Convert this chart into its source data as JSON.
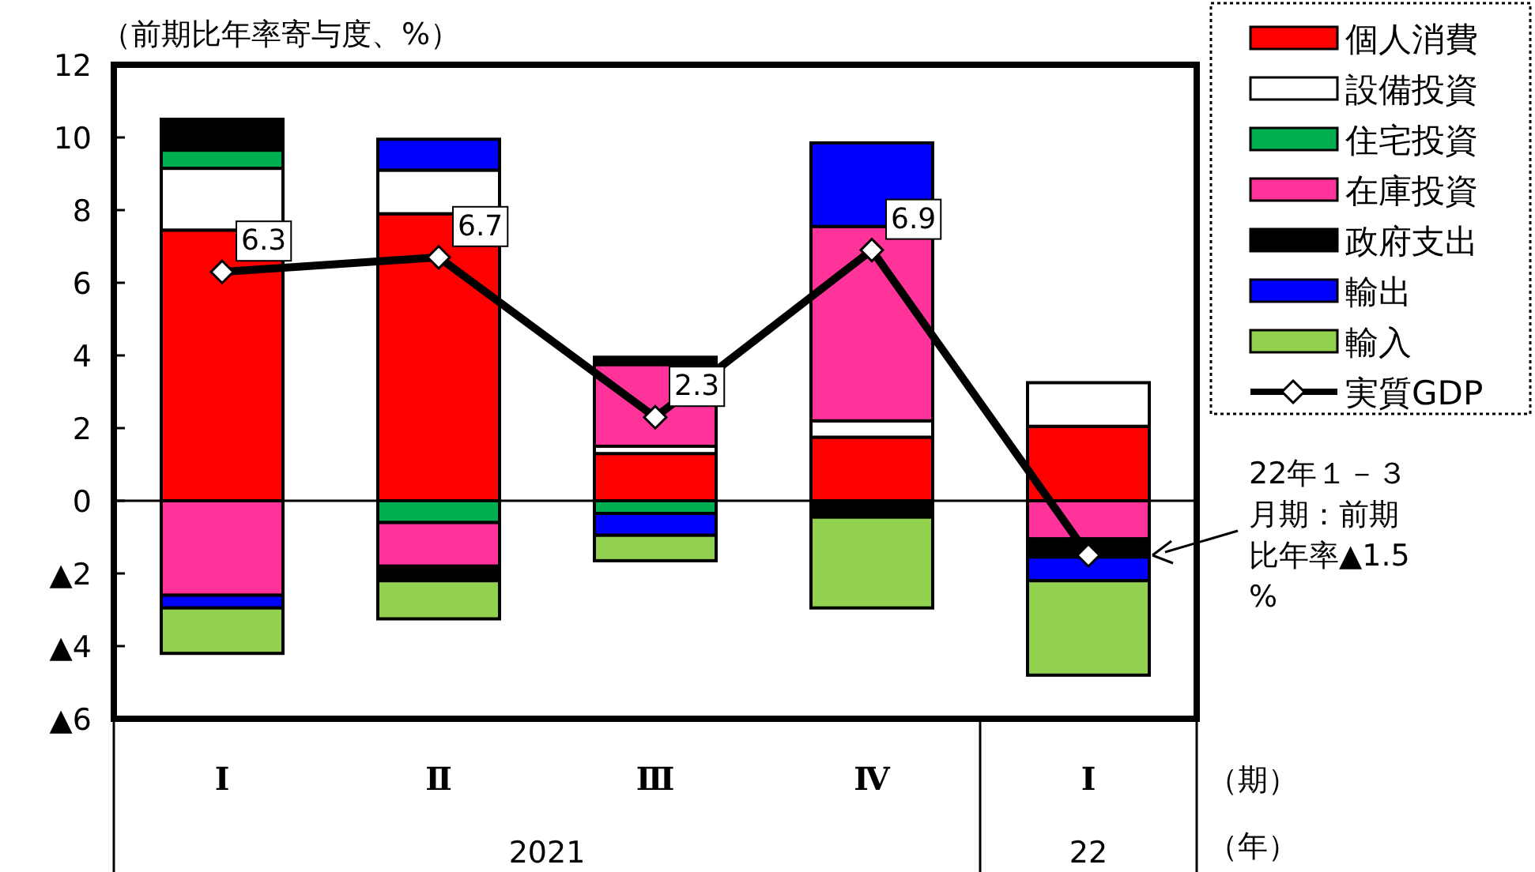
{
  "chart_data": {
    "type": "bar",
    "stacked": true,
    "ylabel": "（前期比年率寄与度、%）",
    "categories": [
      "Ⅰ",
      "Ⅱ",
      "Ⅲ",
      "Ⅳ",
      "Ⅰ"
    ],
    "ylim": [
      -6,
      12
    ],
    "yticks": [
      {
        "value": -6,
        "label": "▲6"
      },
      {
        "value": -4,
        "label": "▲4"
      },
      {
        "value": -2,
        "label": "▲2"
      },
      0,
      2,
      4,
      6,
      8,
      10,
      12
    ],
    "legend": "top right",
    "marker": "diamond",
    "series": [
      {
        "name": "個人消費",
        "color": "#ff0000",
        "values": [
          7.45,
          7.9,
          1.3,
          1.75,
          2.05
        ]
      },
      {
        "name": "設備投資",
        "color": "#ffffff",
        "values": [
          1.7,
          1.2,
          0.2,
          0.45,
          1.2
        ]
      },
      {
        "name": "住宅投資",
        "color": "#00b050",
        "values": [
          0.5,
          -0.6,
          -0.35,
          null,
          null
        ]
      },
      {
        "name": "在庫投資",
        "color": "#ff3399",
        "values": [
          -2.6,
          -1.2,
          2.25,
          5.35,
          -1.05
        ]
      },
      {
        "name": "政府支出",
        "color": "#000000",
        "values": [
          0.85,
          -0.4,
          0.2,
          -0.45,
          -0.5
        ]
      },
      {
        "name": "輸出",
        "color": "#0000ff",
        "values": [
          -0.35,
          0.85,
          -0.6,
          2.3,
          -0.65
        ]
      },
      {
        "name": "輸入",
        "color": "#92d050",
        "values": [
          -1.25,
          -1.05,
          -0.7,
          -2.5,
          -2.6
        ]
      },
      {
        "name": "実質GDP",
        "color": "#000000",
        "type": "line",
        "values": [
          6.3,
          6.7,
          2.3,
          6.9,
          -1.5
        ],
        "value_labels": [
          "6.3",
          "6.7",
          "2.3",
          "6.9",
          null
        ]
      }
    ],
    "annotations": [
      "22年１－３月期：前期比年率▲1.5%",
      "2021",
      "22",
      "（期）",
      "（年）"
    ]
  }
}
